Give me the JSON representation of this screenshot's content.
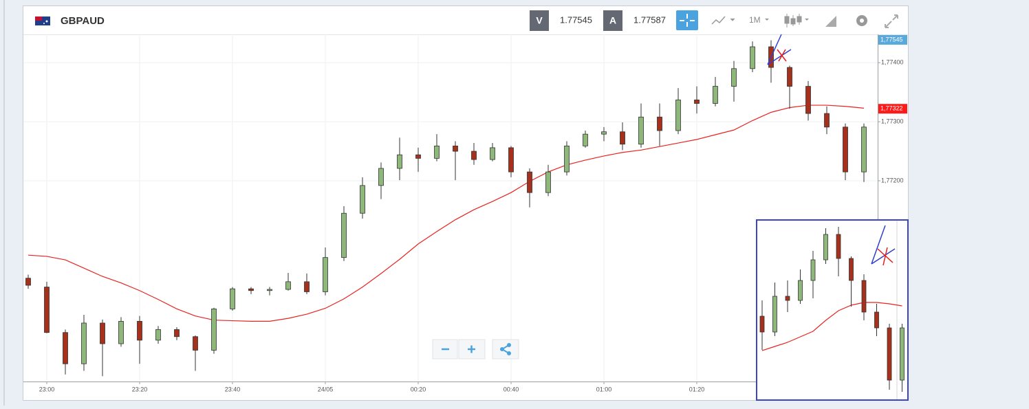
{
  "toolbar": {
    "symbol": "GBPAUD",
    "bid_label": "V",
    "bid": 1.77545,
    "ask_label": "A",
    "ask": 1.77587,
    "timeframe": "1M"
  },
  "chart_data": {
    "type": "candlestick",
    "categories": [
      null,
      "23:00",
      null,
      null,
      null,
      null,
      "23:20",
      null,
      null,
      null,
      null,
      "23:40",
      null,
      null,
      null,
      null,
      "24/05",
      null,
      null,
      null,
      null,
      "00:20",
      null,
      null,
      null,
      null,
      "00:40",
      null,
      null,
      null,
      null,
      "01:00",
      null,
      null,
      null,
      null,
      "01:20",
      null,
      null,
      null,
      null,
      null,
      null,
      null,
      null,
      null
    ],
    "open": [
      1.77035,
      1.7702,
      1.76943,
      1.7689,
      1.76959,
      1.76924,
      1.76962,
      1.7693,
      1.76948,
      1.76936,
      1.76913,
      1.76983,
      1.77017,
      1.77014,
      1.77016,
      1.77029,
      1.77012,
      1.7707,
      1.77145,
      1.77192,
      1.77221,
      1.77244,
      1.77238,
      1.77259,
      1.7725,
      1.77236,
      1.77256,
      1.77215,
      1.7718,
      1.77215,
      1.77259,
      1.77279,
      1.77283,
      1.77262,
      1.77308,
      1.77285,
      1.77337,
      1.77331,
      1.7736,
      1.7739,
      1.77427,
      1.77392,
      1.7736,
      1.77314,
      1.77291,
      1.77215
    ],
    "high": [
      1.77041,
      1.77029,
      1.76948,
      1.76973,
      1.76965,
      1.76969,
      1.76971,
      1.76954,
      1.76952,
      1.76938,
      1.76985,
      1.7702,
      1.7702,
      1.7702,
      1.77044,
      1.77043,
      1.77087,
      1.77157,
      1.77206,
      1.77231,
      1.77273,
      1.77256,
      1.77279,
      1.77267,
      1.77264,
      1.77264,
      1.77259,
      1.77221,
      1.77227,
      1.77267,
      1.77285,
      1.77291,
      1.77299,
      1.77331,
      1.77331,
      1.77357,
      1.7736,
      1.77376,
      1.77403,
      1.77436,
      1.77438,
      1.77395,
      1.77369,
      1.77326,
      1.77297,
      1.77297
    ],
    "low": [
      1.77017,
      1.76942,
      1.76872,
      1.76878,
      1.76869,
      1.76919,
      1.7689,
      1.76924,
      1.7693,
      1.76878,
      1.76907,
      1.7698,
      1.77008,
      1.77006,
      1.77014,
      1.77008,
      1.77006,
      1.77064,
      1.77136,
      1.77169,
      1.77201,
      1.77215,
      1.77233,
      1.77201,
      1.77227,
      1.77233,
      1.77206,
      1.77155,
      1.77174,
      1.77209,
      1.77256,
      1.77267,
      1.77252,
      1.77256,
      1.77259,
      1.77279,
      1.77314,
      1.77326,
      1.77334,
      1.77384,
      1.77366,
      1.77322,
      1.77302,
      1.77279,
      1.77201,
      1.77198
    ],
    "close": [
      1.77023,
      1.76943,
      1.7689,
      1.76959,
      1.76924,
      1.76962,
      1.7693,
      1.76948,
      1.76936,
      1.76913,
      1.76983,
      1.77017,
      1.77014,
      1.77016,
      1.77029,
      1.77012,
      1.7707,
      1.77145,
      1.77192,
      1.77221,
      1.77244,
      1.77238,
      1.77259,
      1.7725,
      1.77236,
      1.77256,
      1.77215,
      1.7718,
      1.77215,
      1.77259,
      1.77279,
      1.77283,
      1.77262,
      1.77308,
      1.77285,
      1.77337,
      1.77331,
      1.7736,
      1.7739,
      1.77427,
      1.77392,
      1.7736,
      1.77314,
      1.77291,
      1.77215,
      1.77291
    ],
    "colors": {
      "up": "#8db879",
      "down": "#a5301c"
    },
    "moving_average": {
      "color": "#e8231f",
      "values": [
        1.77074,
        1.77072,
        1.77066,
        1.77052,
        1.77038,
        1.77027,
        1.77014,
        1.76999,
        1.76983,
        1.76971,
        1.76964,
        1.76963,
        1.76962,
        1.76962,
        1.76967,
        1.76974,
        1.76984,
        1.77,
        1.7702,
        1.77043,
        1.77067,
        1.77093,
        1.77114,
        1.77134,
        1.77151,
        1.77165,
        1.7718,
        1.77199,
        1.77215,
        1.77227,
        1.77235,
        1.77242,
        1.77248,
        1.77252,
        1.77258,
        1.77264,
        1.7727,
        1.77278,
        1.77286,
        1.77302,
        1.77316,
        1.77324,
        1.77328,
        1.77328,
        1.77326,
        1.77323
      ]
    },
    "ylim": [
      1.7686,
      1.77448
    ],
    "yticks": [
      {
        "value": 1.772,
        "label": "1,77200"
      },
      {
        "value": 1.773,
        "label": "1,77300"
      },
      {
        "value": 1.774,
        "label": "1,77400"
      }
    ],
    "grid": true,
    "price_markers": [
      {
        "value": 1.77545,
        "label": "1,77545",
        "color": "#5aa9dd"
      },
      {
        "value": 1.77322,
        "label": "1,77322",
        "color": "#ff1a1a"
      }
    ],
    "inset_color": "#3a44c4"
  }
}
